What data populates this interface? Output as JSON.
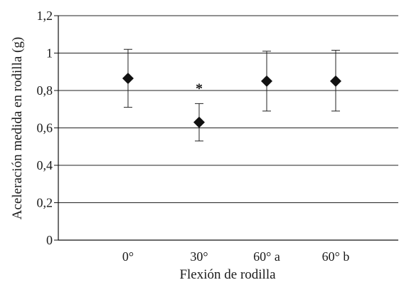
{
  "chart_data": {
    "type": "scatter",
    "title": "",
    "xlabel": "Flexión de rodilla",
    "ylabel": "Aceleración medida en rodilla (g)",
    "categories": [
      "0°",
      "30°",
      "60° a",
      "60° b"
    ],
    "series": [
      {
        "values": [
          0.865,
          0.63,
          0.85,
          0.85
        ],
        "err_low": [
          0.71,
          0.53,
          0.69,
          0.69
        ],
        "err_high": [
          1.02,
          0.73,
          1.01,
          1.015
        ]
      }
    ],
    "ylim": [
      0,
      1.2
    ],
    "yticks": [
      "0",
      "0,2",
      "0,4",
      "0,6",
      "0,8",
      "1",
      "1,2"
    ],
    "ytick_values": [
      0,
      0.2,
      0.4,
      0.6,
      0.8,
      1.0,
      1.2
    ],
    "grid": true,
    "legend": "none",
    "annotations": [
      {
        "text": "*",
        "category": "30°",
        "y": 0.81
      }
    ],
    "colors": {
      "marker": "#111111",
      "grid": "#222222",
      "axis": "#111111"
    }
  }
}
